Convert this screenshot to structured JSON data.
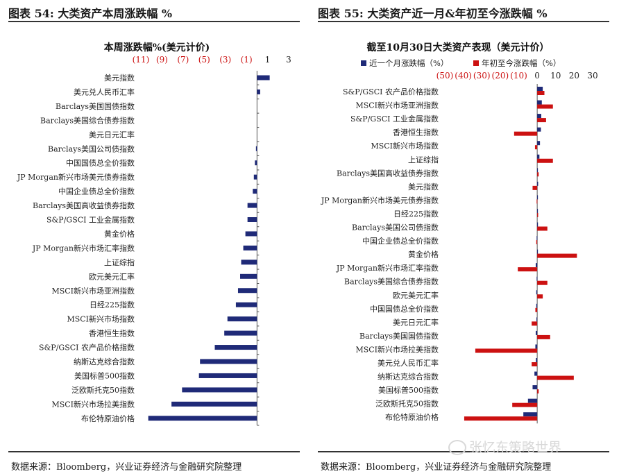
{
  "left_panel": {
    "figure_title": "图表 54:  大类资产本周涨跌幅  %",
    "source": "数据来源：Bloomberg，兴业证券经济与金融研究院整理"
  },
  "right_panel": {
    "figure_title": "图表 55:  大类资产近一月&年初至今涨跌幅  %",
    "source": "数据来源：Bloomberg，兴业证券经济与金融研究院整理"
  },
  "watermark": "张忆东策略世界",
  "colors": {
    "navy": "#1f2a78",
    "red": "#cc1111",
    "axis_neg_label": "#cc1111"
  },
  "chart_data": [
    {
      "type": "bar",
      "orientation": "horizontal",
      "title": "本周涨跌幅%(美元计价)",
      "xlim": [
        -11,
        3
      ],
      "xticks": [
        -11,
        -9,
        -7,
        -5,
        -3,
        -1,
        1,
        3
      ],
      "xtick_labels": [
        "(11)",
        "(9)",
        "(7)",
        "(5)",
        "(3)",
        "(1)",
        "1",
        "3"
      ],
      "categories": [
        "美元指数",
        "美元兑人民币汇率",
        "Barclays美国国债指数",
        "Barclays美国综合债券指数",
        "美元日元汇率",
        "Barclays美国公司债指数",
        "中国国债总全价指数",
        "JP Morgan新兴市场美元债券指数",
        "中国企业债总全价指数",
        "Barclays美国高收益债券指数",
        "S&P/GSCI 工业金属指数",
        "黄金价格",
        "JP Morgan新兴市场汇率指数",
        "上证综指",
        "欧元美元汇率",
        "MSCI新兴市场亚洲指数",
        "日经225指数",
        "MSCI新兴市场指数",
        "香港恒生指数",
        "S&P/GSCI 农产品价格指数",
        "纳斯达克综合指数",
        "美国标普500指数",
        "泛欧斯托克50指数",
        "MSCI新兴市场拉美指数",
        "布伦特原油价格"
      ],
      "series": [
        {
          "values": [
            1.2,
            0.3,
            0.0,
            0.0,
            0.0,
            -0.1,
            -0.2,
            -0.3,
            -0.4,
            -0.9,
            -0.9,
            -1.1,
            -1.3,
            -1.5,
            -1.6,
            -1.8,
            -2.0,
            -2.8,
            -3.1,
            -4.0,
            -5.4,
            -5.5,
            -7.1,
            -8.1,
            -10.3
          ]
        }
      ]
    },
    {
      "type": "bar",
      "orientation": "horizontal",
      "title": "截至10月30日大类资产表现（美元计价）",
      "xlim": [
        -50,
        30
      ],
      "xticks": [
        -50,
        -40,
        -30,
        -20,
        -10,
        0,
        10,
        20,
        30
      ],
      "xtick_labels": [
        "(50)",
        "(40)",
        "(30)",
        "(20)",
        "(10)",
        "0",
        "10",
        "20",
        "30"
      ],
      "legend": "top",
      "categories": [
        "S&P/GSCI 农产品价格指数",
        "MSCI新兴市场亚洲指数",
        "S&P/GSCI 工业金属指数",
        "香港恒生指数",
        "MSCI新兴市场指数",
        "上证综指",
        "Barclays美国高收益债券指数",
        "美元指数",
        "JP Morgan新兴市场美元债券指数",
        "日经225指数",
        "Barclays美国公司债指数",
        "中国企业债总全价指数",
        "黄金价格",
        "JP Morgan新兴市场汇率指数",
        "Barclays美国综合债券指数",
        "欧元美元汇率",
        "中国国债总全价指数",
        "美元日元汇率",
        "Barclays美国国债指数",
        "MSCI新兴市场拉美指数",
        "美元兑人民币汇率",
        "纳斯达克综合指数",
        "美国标普500指数",
        "泛欧斯托克50指数",
        "布伦特原油价格"
      ],
      "series": [
        {
          "name": "近一个月涨跌幅（%）",
          "values": [
            3.0,
            2.5,
            2.2,
            2.0,
            1.5,
            1.2,
            0.3,
            0.5,
            0.2,
            0.3,
            0.4,
            -0.3,
            0.1,
            -0.8,
            -0.3,
            -0.5,
            -0.5,
            -0.4,
            -0.8,
            -1.0,
            -0.7,
            -1.5,
            -2.5,
            -5.0,
            -7.5
          ]
        },
        {
          "name": "年初至今涨跌幅（%）",
          "values": [
            3.9,
            8.5,
            4.8,
            -12.5,
            -1.2,
            8.5,
            0.8,
            -2.5,
            -0.3,
            0.5,
            5.5,
            -0.5,
            21.5,
            -10.5,
            5.5,
            3.0,
            -1.0,
            -3.0,
            7.0,
            -33.5,
            -3.0,
            19.8,
            0.8,
            -13.5,
            -39.5
          ]
        }
      ]
    }
  ]
}
